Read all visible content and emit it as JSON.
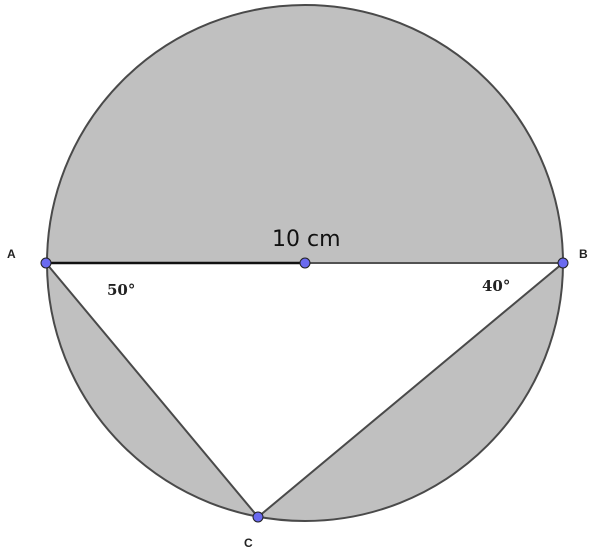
{
  "points": [
    {
      "label": "A"
    },
    {
      "label": "B"
    },
    {
      "label": "C"
    }
  ],
  "segment_label": "10 cm",
  "angles": [
    {
      "label": "50°"
    },
    {
      "label": "40°"
    }
  ]
}
